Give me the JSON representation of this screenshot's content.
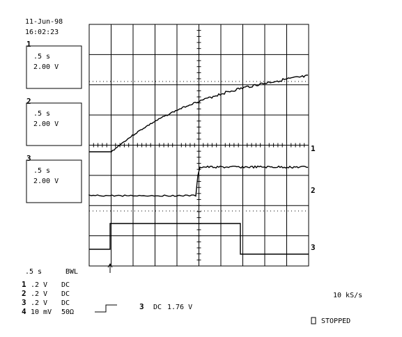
{
  "header": {
    "date": "11-Jun-98",
    "time": "16:02:23"
  },
  "channels": [
    {
      "label": "1",
      "timebase": ".5 s",
      "scale": "2.00 V"
    },
    {
      "label": "2",
      "timebase": ".5 s",
      "scale": "2.00 V"
    },
    {
      "label": "3",
      "timebase": ".5 s",
      "scale": "2.00 V"
    }
  ],
  "trace_markers": [
    "1",
    "2",
    "3"
  ],
  "footer": {
    "timebase": ".5 s",
    "bandwidth": "BWL",
    "inputs": [
      {
        "channel": "1",
        "scale": ".2  V",
        "coupling": "DC"
      },
      {
        "channel": "2",
        "scale": ".2  V",
        "coupling": "DC"
      },
      {
        "channel": "3",
        "scale": ".2  V",
        "coupling": "DC"
      },
      {
        "channel": "4",
        "scale": "10 mV",
        "coupling": "50Ω"
      }
    ],
    "trigger": {
      "channel": "3",
      "coupling": "DC",
      "level": "1.76 V"
    },
    "sample_rate": "10 kS/s",
    "status": "STOPPED"
  }
}
